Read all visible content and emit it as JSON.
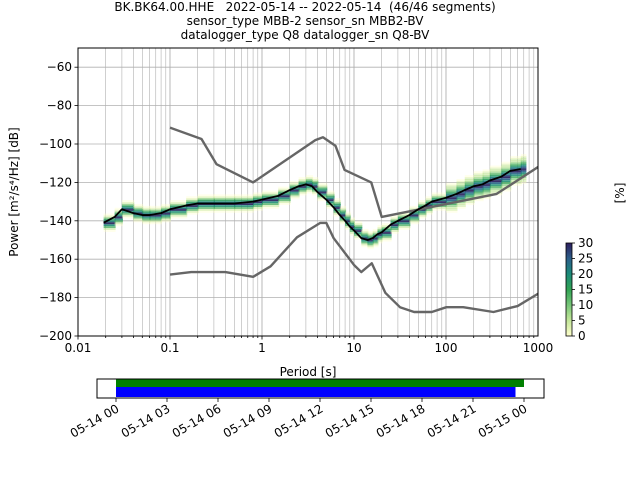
{
  "title_lines": [
    "BK.BK64.00.HHE   2022-05-14 -- 2022-05-14  (46/46 segments)",
    "sensor_type MBB-2 sensor_sn MBB2-BV",
    "datalogger_type Q8 datalogger_sn Q8-BV"
  ],
  "chart_data": [
    {
      "type": "heatmap",
      "title": "BK.BK64.00.HHE   2022-05-14 -- 2022-05-14  (46/46 segments)",
      "xlabel": "Period [s]",
      "ylabel": "Power [m²/s⁴/Hz] [dB]",
      "x_scale": "log",
      "xlim": [
        0.01,
        1000
      ],
      "ylim": [
        -200,
        -50
      ],
      "x_ticks": [
        0.01,
        0.1,
        1,
        10,
        100,
        1000
      ],
      "x_tick_labels": [
        "0.01",
        "0.1",
        "1",
        "10",
        "100",
        "1000"
      ],
      "y_ticks": [
        -200,
        -180,
        -160,
        -140,
        -120,
        -100,
        -80,
        -60
      ],
      "y_tick_labels": [
        "−200",
        "−180",
        "−160",
        "−140",
        "−120",
        "−100",
        "−80",
        "−60"
      ],
      "grid": true,
      "colorbar": {
        "label": "[%]",
        "range": [
          0,
          30
        ],
        "ticks": [
          0,
          5,
          10,
          15,
          20,
          25,
          30
        ],
        "colormap": [
          "#ffffcc",
          "#c2e699",
          "#78c679",
          "#31a354",
          "#1b8a7a",
          "#2c5f8a",
          "#2d1e5e"
        ]
      },
      "series": [
        {
          "name": "",
          "role": "mode",
          "color": "#000000",
          "x": [
            0.019,
            0.025,
            0.03,
            0.04,
            0.05,
            0.06,
            0.08,
            0.1,
            0.15,
            0.2,
            0.3,
            0.5,
            0.8,
            1.0,
            1.5,
            2.0,
            2.5,
            3.0,
            3.5,
            4.0,
            5.0,
            6.0,
            7.0,
            8.0,
            9.0,
            10,
            12,
            14,
            16,
            18,
            20,
            25,
            30,
            40,
            50,
            60,
            70,
            100,
            130,
            160,
            200,
            250,
            300,
            400,
            500,
            650
          ],
          "y": [
            -141,
            -138,
            -134,
            -136,
            -137,
            -137,
            -136,
            -134,
            -132,
            -131,
            -131,
            -131,
            -130,
            -129,
            -127,
            -124,
            -122,
            -121,
            -122,
            -125,
            -129,
            -133,
            -137,
            -140,
            -143,
            -145,
            -149,
            -150,
            -149,
            -147,
            -146,
            -142,
            -140,
            -137,
            -134,
            -132,
            -130,
            -128,
            -126,
            -124,
            -122,
            -121,
            -119,
            -117,
            -114,
            -113
          ]
        },
        {
          "name": "",
          "role": "noise-model-high",
          "color": "#666666",
          "x": [
            0.1,
            0.22,
            0.32,
            0.8,
            3.8,
            4.6,
            6.3,
            7.9,
            15.4,
            20,
            354.8,
            1000
          ],
          "y": [
            -91.5,
            -97.4,
            -110.5,
            -120,
            -98,
            -96.5,
            -101,
            -113.5,
            -120,
            -138,
            -126,
            -112
          ]
        },
        {
          "name": "",
          "role": "noise-model-low",
          "color": "#666666",
          "x": [
            0.1,
            0.17,
            0.4,
            0.8,
            1.24,
            2.4,
            4.3,
            5.0,
            6.0,
            10,
            12,
            15.6,
            21.9,
            31.6,
            45,
            70,
            101,
            154,
            328,
            600,
            1000
          ],
          "y": [
            -168,
            -166.7,
            -166.7,
            -169.2,
            -163.7,
            -148.6,
            -141.1,
            -141.1,
            -149,
            -163,
            -166.7,
            -162.1,
            -177.5,
            -185,
            -187.5,
            -187.5,
            -185,
            -185,
            -187.5,
            -184.4,
            -178
          ]
        }
      ]
    },
    {
      "type": "timeline",
      "x_tick_labels": [
        "05-14 00",
        "05-14 03",
        "05-14 06",
        "05-14 09",
        "05-14 12",
        "05-14 15",
        "05-14 18",
        "05-14 21",
        "05-15 00"
      ],
      "series": [
        {
          "name": "",
          "color": "#008000",
          "start": "05-14 00",
          "end": "05-15 00"
        },
        {
          "name": "",
          "color": "#0000ff",
          "start": "05-14 00",
          "end": "05-14 23:30"
        }
      ]
    }
  ]
}
